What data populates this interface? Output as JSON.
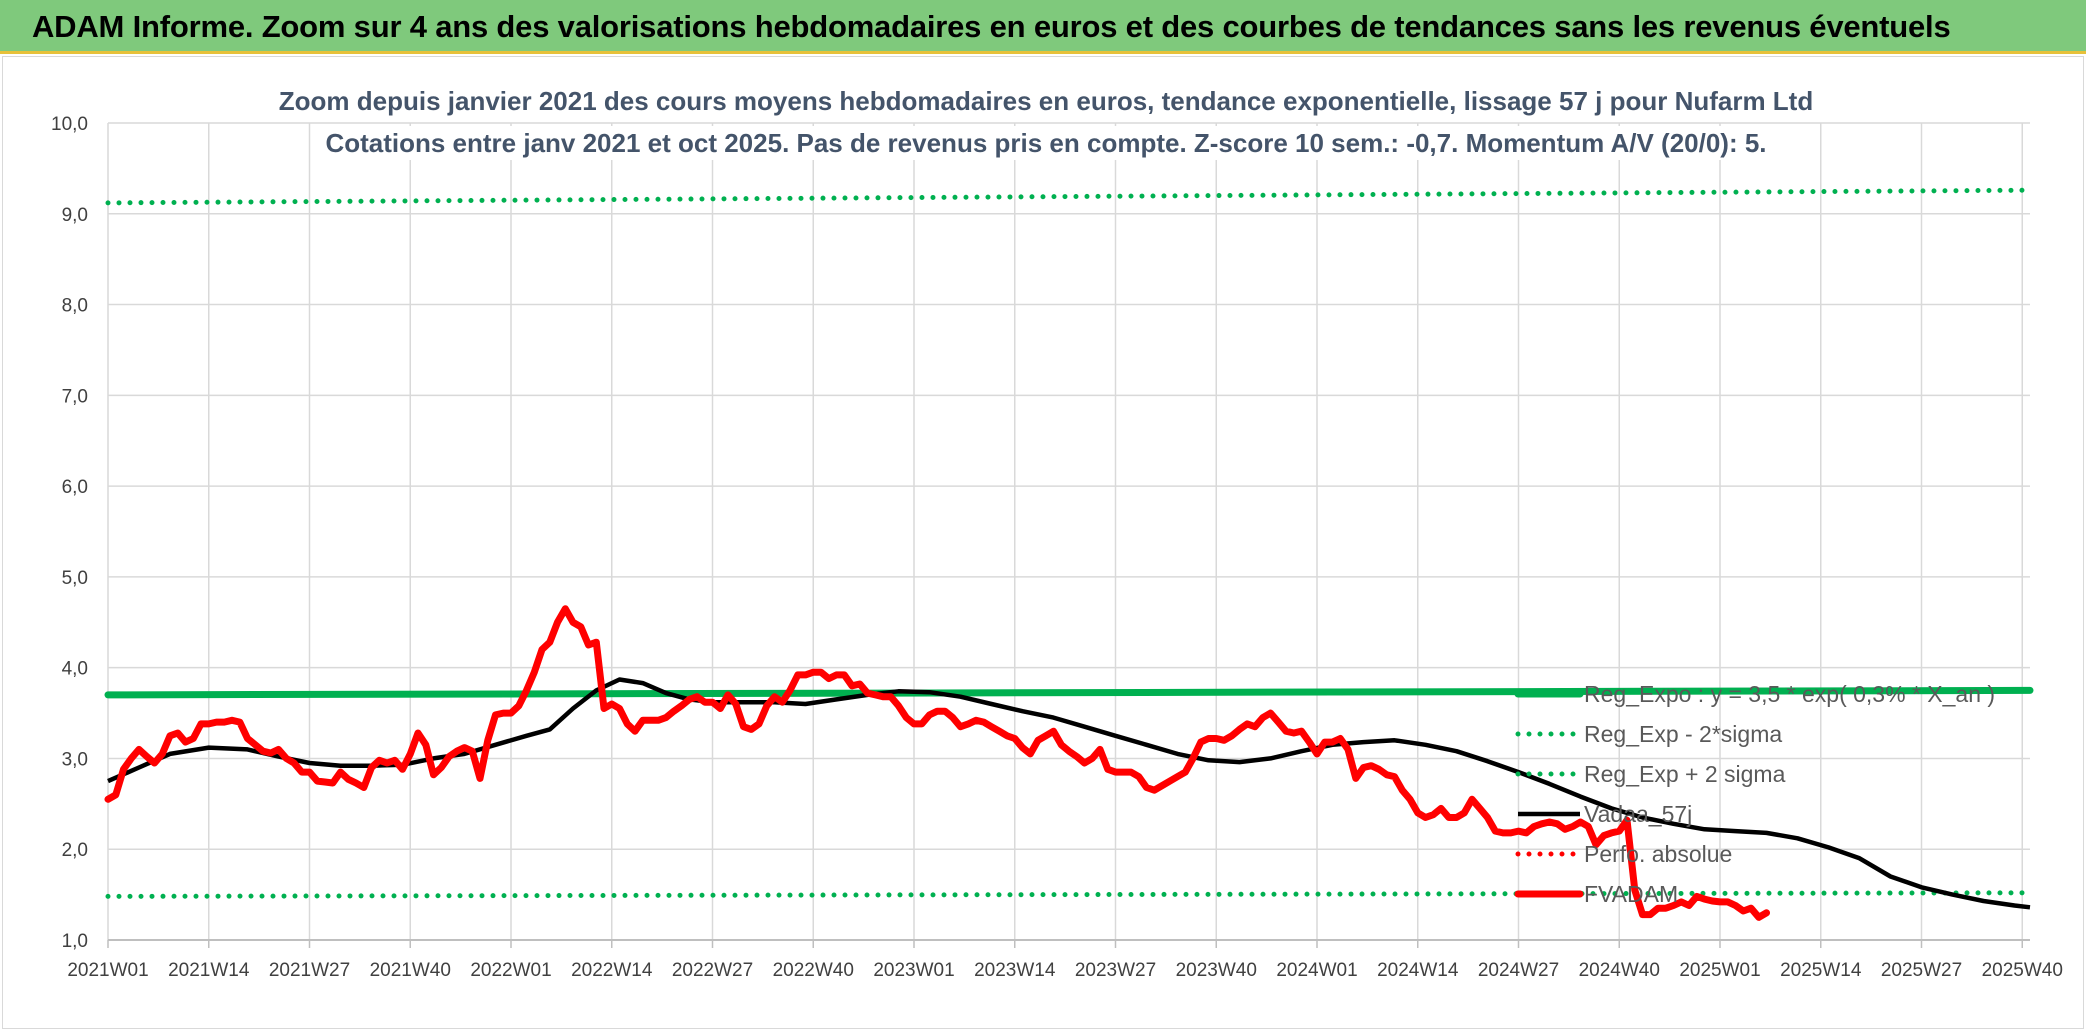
{
  "banner": {
    "title": "ADAM Informe. Zoom sur 4 ans des valorisations hebdomadaires en euros et des courbes de tendances sans les revenus éventuels"
  },
  "colors": {
    "banner_bg": "#7fc97c",
    "green": "#00b050",
    "black": "#000000",
    "red": "#ff0000",
    "grid": "#d9d9d9"
  },
  "chart_data": {
    "type": "line",
    "title_line1": "Zoom depuis janvier 2021 des cours moyens hebdomadaires en euros, tendance exponentielle, lissage 57 j pour Nufarm Ltd",
    "title_line2": "Cotations entre janv 2021 et oct 2025. Pas de revenus pris en compte. Z-score 10 sem.: -0,7. Momentum A/V (20/0): 5.",
    "xlabel": "",
    "ylabel": "",
    "ylim": [
      1.0,
      10.0
    ],
    "y_ticks": [
      "1,0",
      "2,0",
      "3,0",
      "4,0",
      "5,0",
      "6,0",
      "7,0",
      "8,0",
      "9,0",
      "10,0"
    ],
    "x_range": [
      0,
      248
    ],
    "x_ticks": [
      {
        "x": 0,
        "label": "2021W01"
      },
      {
        "x": 13,
        "label": "2021W14"
      },
      {
        "x": 26,
        "label": "2021W27"
      },
      {
        "x": 39,
        "label": "2021W40"
      },
      {
        "x": 52,
        "label": "2022W01"
      },
      {
        "x": 65,
        "label": "2022W14"
      },
      {
        "x": 78,
        "label": "2022W27"
      },
      {
        "x": 91,
        "label": "2022W40"
      },
      {
        "x": 104,
        "label": "2023W01"
      },
      {
        "x": 117,
        "label": "2023W14"
      },
      {
        "x": 130,
        "label": "2023W27"
      },
      {
        "x": 143,
        "label": "2023W40"
      },
      {
        "x": 156,
        "label": "2024W01"
      },
      {
        "x": 169,
        "label": "2024W14"
      },
      {
        "x": 182,
        "label": "2024W27"
      },
      {
        "x": 195,
        "label": "2024W40"
      },
      {
        "x": 208,
        "label": "2025W01"
      },
      {
        "x": 221,
        "label": "2025W14"
      },
      {
        "x": 234,
        "label": "2025W27"
      },
      {
        "x": 247,
        "label": "2025W40"
      }
    ],
    "legend": [
      "Reg_Expo : y = 3,5 * exp( 0,3% * X_an )",
      "Reg_Exp - 2*sigma",
      "Reg_Exp + 2 sigma",
      "Vadaa_57j",
      "Perfo. absolue",
      "FVADAM"
    ],
    "series": [
      {
        "name": "Reg_Expo : y = 3,5 * exp( 0,3% * X_an )",
        "style": "solid-thick",
        "color": "#00b050",
        "points": [
          [
            0,
            3.7
          ],
          [
            248,
            3.75
          ]
        ]
      },
      {
        "name": "Reg_Exp - 2*sigma",
        "style": "dotted",
        "color": "#00b050",
        "points": [
          [
            0,
            1.48
          ],
          [
            248,
            1.52
          ]
        ]
      },
      {
        "name": "Reg_Exp + 2 sigma",
        "style": "dotted",
        "color": "#00b050",
        "points": [
          [
            0,
            9.12
          ],
          [
            248,
            9.26
          ]
        ]
      },
      {
        "name": "Vadaa_57j",
        "style": "solid",
        "color": "#000000",
        "points": [
          [
            0,
            2.75
          ],
          [
            4,
            2.9
          ],
          [
            8,
            3.05
          ],
          [
            13,
            3.12
          ],
          [
            18,
            3.1
          ],
          [
            22,
            3.02
          ],
          [
            26,
            2.95
          ],
          [
            30,
            2.92
          ],
          [
            34,
            2.92
          ],
          [
            38,
            2.93
          ],
          [
            42,
            3.0
          ],
          [
            46,
            3.05
          ],
          [
            50,
            3.15
          ],
          [
            54,
            3.25
          ],
          [
            57,
            3.32
          ],
          [
            60,
            3.55
          ],
          [
            63,
            3.75
          ],
          [
            66,
            3.87
          ],
          [
            69,
            3.83
          ],
          [
            72,
            3.72
          ],
          [
            75,
            3.65
          ],
          [
            78,
            3.62
          ],
          [
            82,
            3.62
          ],
          [
            86,
            3.62
          ],
          [
            90,
            3.6
          ],
          [
            94,
            3.65
          ],
          [
            98,
            3.7
          ],
          [
            102,
            3.74
          ],
          [
            106,
            3.73
          ],
          [
            110,
            3.68
          ],
          [
            114,
            3.6
          ],
          [
            118,
            3.52
          ],
          [
            122,
            3.45
          ],
          [
            126,
            3.35
          ],
          [
            130,
            3.25
          ],
          [
            134,
            3.15
          ],
          [
            138,
            3.05
          ],
          [
            142,
            2.98
          ],
          [
            146,
            2.96
          ],
          [
            150,
            3.0
          ],
          [
            154,
            3.08
          ],
          [
            158,
            3.15
          ],
          [
            162,
            3.18
          ],
          [
            166,
            3.2
          ],
          [
            170,
            3.15
          ],
          [
            174,
            3.08
          ],
          [
            178,
            2.97
          ],
          [
            182,
            2.85
          ],
          [
            186,
            2.72
          ],
          [
            190,
            2.58
          ],
          [
            194,
            2.45
          ],
          [
            198,
            2.35
          ],
          [
            202,
            2.28
          ],
          [
            206,
            2.22
          ],
          [
            210,
            2.2
          ],
          [
            214,
            2.18
          ],
          [
            218,
            2.12
          ],
          [
            222,
            2.02
          ],
          [
            226,
            1.9
          ],
          [
            230,
            1.7
          ],
          [
            234,
            1.58
          ],
          [
            238,
            1.5
          ],
          [
            242,
            1.43
          ],
          [
            246,
            1.38
          ],
          [
            248,
            1.36
          ]
        ]
      },
      {
        "name": "Perfo. absolue",
        "style": "dotted",
        "color": "#ff0000",
        "points": []
      },
      {
        "name": "FVADAM",
        "style": "solid-thick",
        "color": "#ff0000",
        "points": [
          [
            0,
            2.55
          ],
          [
            1,
            2.6
          ],
          [
            2,
            2.88
          ],
          [
            3,
            3.0
          ],
          [
            4,
            3.1
          ],
          [
            5,
            3.02
          ],
          [
            6,
            2.95
          ],
          [
            7,
            3.05
          ],
          [
            8,
            3.25
          ],
          [
            9,
            3.28
          ],
          [
            10,
            3.18
          ],
          [
            11,
            3.22
          ],
          [
            12,
            3.38
          ],
          [
            13,
            3.38
          ],
          [
            14,
            3.4
          ],
          [
            15,
            3.4
          ],
          [
            16,
            3.42
          ],
          [
            17,
            3.4
          ],
          [
            18,
            3.22
          ],
          [
            19,
            3.15
          ],
          [
            20,
            3.08
          ],
          [
            21,
            3.06
          ],
          [
            22,
            3.1
          ],
          [
            23,
            3.0
          ],
          [
            24,
            2.95
          ],
          [
            25,
            2.85
          ],
          [
            26,
            2.85
          ],
          [
            27,
            2.75
          ],
          [
            28,
            2.74
          ],
          [
            29,
            2.73
          ],
          [
            30,
            2.85
          ],
          [
            31,
            2.77
          ],
          [
            32,
            2.73
          ],
          [
            33,
            2.68
          ],
          [
            34,
            2.9
          ],
          [
            35,
            2.98
          ],
          [
            36,
            2.95
          ],
          [
            37,
            2.98
          ],
          [
            38,
            2.88
          ],
          [
            39,
            3.05
          ],
          [
            40,
            3.28
          ],
          [
            41,
            3.15
          ],
          [
            42,
            2.82
          ],
          [
            43,
            2.9
          ],
          [
            44,
            3.02
          ],
          [
            45,
            3.08
          ],
          [
            46,
            3.12
          ],
          [
            47,
            3.08
          ],
          [
            48,
            2.78
          ],
          [
            49,
            3.2
          ],
          [
            50,
            3.48
          ],
          [
            51,
            3.5
          ],
          [
            52,
            3.5
          ],
          [
            53,
            3.58
          ],
          [
            54,
            3.75
          ],
          [
            55,
            3.95
          ],
          [
            56,
            4.2
          ],
          [
            57,
            4.28
          ],
          [
            58,
            4.5
          ],
          [
            59,
            4.65
          ],
          [
            60,
            4.5
          ],
          [
            61,
            4.45
          ],
          [
            62,
            4.25
          ],
          [
            63,
            4.28
          ],
          [
            64,
            3.55
          ],
          [
            65,
            3.6
          ],
          [
            66,
            3.55
          ],
          [
            67,
            3.38
          ],
          [
            68,
            3.3
          ],
          [
            69,
            3.42
          ],
          [
            70,
            3.42
          ],
          [
            71,
            3.42
          ],
          [
            72,
            3.45
          ],
          [
            73,
            3.52
          ],
          [
            74,
            3.58
          ],
          [
            75,
            3.65
          ],
          [
            76,
            3.68
          ],
          [
            77,
            3.62
          ],
          [
            78,
            3.62
          ],
          [
            79,
            3.55
          ],
          [
            80,
            3.7
          ],
          [
            81,
            3.6
          ],
          [
            82,
            3.35
          ],
          [
            83,
            3.32
          ],
          [
            84,
            3.38
          ],
          [
            85,
            3.58
          ],
          [
            86,
            3.68
          ],
          [
            87,
            3.62
          ],
          [
            88,
            3.75
          ],
          [
            89,
            3.92
          ],
          [
            90,
            3.92
          ],
          [
            91,
            3.95
          ],
          [
            92,
            3.95
          ],
          [
            93,
            3.88
          ],
          [
            94,
            3.92
          ],
          [
            95,
            3.92
          ],
          [
            96,
            3.8
          ],
          [
            97,
            3.82
          ],
          [
            98,
            3.72
          ],
          [
            99,
            3.7
          ],
          [
            100,
            3.68
          ],
          [
            101,
            3.68
          ],
          [
            102,
            3.58
          ],
          [
            103,
            3.45
          ],
          [
            104,
            3.38
          ],
          [
            105,
            3.38
          ],
          [
            106,
            3.48
          ],
          [
            107,
            3.52
          ],
          [
            108,
            3.52
          ],
          [
            109,
            3.45
          ],
          [
            110,
            3.35
          ],
          [
            111,
            3.38
          ],
          [
            112,
            3.42
          ],
          [
            113,
            3.4
          ],
          [
            114,
            3.35
          ],
          [
            115,
            3.3
          ],
          [
            116,
            3.25
          ],
          [
            117,
            3.22
          ],
          [
            118,
            3.12
          ],
          [
            119,
            3.05
          ],
          [
            120,
            3.2
          ],
          [
            121,
            3.25
          ],
          [
            122,
            3.3
          ],
          [
            123,
            3.15
          ],
          [
            124,
            3.08
          ],
          [
            125,
            3.02
          ],
          [
            126,
            2.95
          ],
          [
            127,
            3.0
          ],
          [
            128,
            3.1
          ],
          [
            129,
            2.88
          ],
          [
            130,
            2.85
          ],
          [
            131,
            2.85
          ],
          [
            132,
            2.85
          ],
          [
            133,
            2.8
          ],
          [
            134,
            2.68
          ],
          [
            135,
            2.65
          ],
          [
            136,
            2.7
          ],
          [
            137,
            2.75
          ],
          [
            138,
            2.8
          ],
          [
            139,
            2.85
          ],
          [
            140,
            3.0
          ],
          [
            141,
            3.18
          ],
          [
            142,
            3.22
          ],
          [
            143,
            3.22
          ],
          [
            144,
            3.2
          ],
          [
            145,
            3.25
          ],
          [
            146,
            3.32
          ],
          [
            147,
            3.38
          ],
          [
            148,
            3.35
          ],
          [
            149,
            3.45
          ],
          [
            150,
            3.5
          ],
          [
            151,
            3.4
          ],
          [
            152,
            3.3
          ],
          [
            153,
            3.28
          ],
          [
            154,
            3.3
          ],
          [
            155,
            3.18
          ],
          [
            156,
            3.05
          ],
          [
            157,
            3.18
          ],
          [
            158,
            3.18
          ],
          [
            159,
            3.22
          ],
          [
            160,
            3.1
          ],
          [
            161,
            2.78
          ],
          [
            162,
            2.9
          ],
          [
            163,
            2.92
          ],
          [
            164,
            2.88
          ],
          [
            165,
            2.82
          ],
          [
            166,
            2.8
          ],
          [
            167,
            2.65
          ],
          [
            168,
            2.55
          ],
          [
            169,
            2.4
          ],
          [
            170,
            2.35
          ],
          [
            171,
            2.38
          ],
          [
            172,
            2.45
          ],
          [
            173,
            2.35
          ],
          [
            174,
            2.35
          ],
          [
            175,
            2.4
          ],
          [
            176,
            2.55
          ],
          [
            177,
            2.45
          ],
          [
            178,
            2.35
          ],
          [
            179,
            2.2
          ],
          [
            180,
            2.18
          ],
          [
            181,
            2.18
          ],
          [
            182,
            2.2
          ],
          [
            183,
            2.18
          ],
          [
            184,
            2.25
          ],
          [
            185,
            2.28
          ],
          [
            186,
            2.3
          ],
          [
            187,
            2.28
          ],
          [
            188,
            2.22
          ],
          [
            189,
            2.25
          ],
          [
            190,
            2.3
          ],
          [
            191,
            2.25
          ],
          [
            192,
            2.05
          ],
          [
            193,
            2.15
          ],
          [
            194,
            2.18
          ],
          [
            195,
            2.2
          ],
          [
            196,
            2.32
          ],
          [
            197,
            1.55
          ],
          [
            198,
            1.28
          ],
          [
            199,
            1.28
          ],
          [
            200,
            1.35
          ],
          [
            201,
            1.35
          ],
          [
            202,
            1.38
          ],
          [
            203,
            1.42
          ],
          [
            204,
            1.38
          ],
          [
            205,
            1.48
          ],
          [
            206,
            1.45
          ],
          [
            207,
            1.43
          ],
          [
            208,
            1.42
          ],
          [
            209,
            1.42
          ],
          [
            210,
            1.38
          ],
          [
            211,
            1.32
          ],
          [
            212,
            1.35
          ],
          [
            213,
            1.25
          ],
          [
            214,
            1.3
          ]
        ]
      }
    ]
  }
}
